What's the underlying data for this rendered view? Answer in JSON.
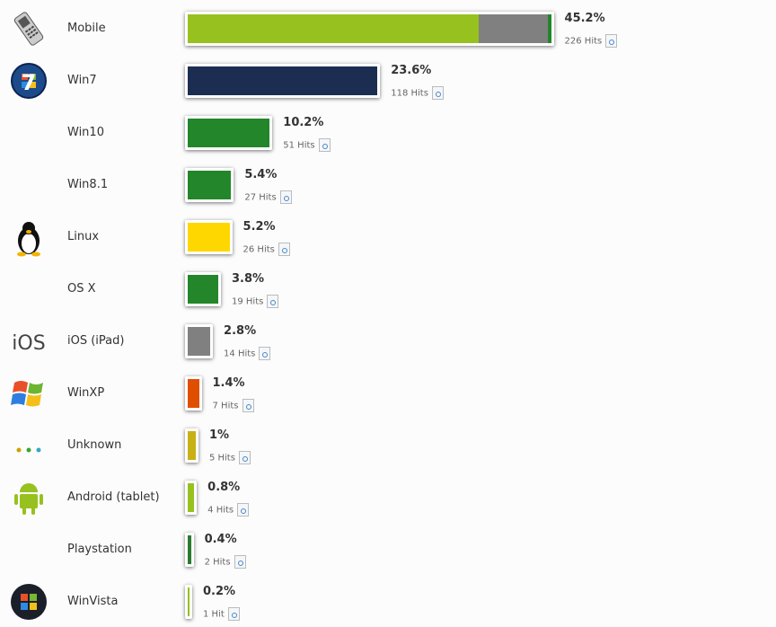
{
  "chart_data": {
    "type": "bar",
    "orientation": "horizontal",
    "categories": [
      "Mobile",
      "Win7",
      "Win10",
      "Win8.1",
      "Linux",
      "OS X",
      "iOS (iPad)",
      "WinXP",
      "Unknown",
      "Android (tablet)",
      "Playstation",
      "WinVista"
    ],
    "values": [
      45.2,
      23.6,
      10.2,
      5.4,
      5.2,
      3.8,
      2.8,
      1.4,
      1,
      0.8,
      0.4,
      0.2
    ],
    "percent_labels": [
      "45.2%",
      "23.6%",
      "10.2%",
      "5.4%",
      "5.2%",
      "3.8%",
      "2.8%",
      "1.4%",
      "1%",
      "0.8%",
      "0.4%",
      "0.2%"
    ],
    "hits_labels": [
      "226 Hits",
      "118 Hits",
      "51 Hits",
      "27 Hits",
      "26 Hits",
      "19 Hits",
      "14 Hits",
      "7 Hits",
      "5 Hits",
      "4 Hits",
      "2 Hits",
      "1 Hit"
    ],
    "colors": [
      "#97c11f",
      "#1b2d50",
      "#23862a",
      "#23862a",
      "#ffd700",
      "#23862a",
      "#808080",
      "#e04e00",
      "#c8b115",
      "#97c11f",
      "#2a7a30",
      "#97c11f"
    ],
    "segments": {
      "Mobile": [
        {
          "value": 36.2,
          "color": "#97c11f"
        },
        {
          "value": 8.6,
          "color": "#808080"
        },
        {
          "value": 0.4,
          "color": "#23862a"
        }
      ]
    },
    "icons": [
      "mobile-phone-icon",
      "windows7-icon",
      "",
      "",
      "linux-tux-icon",
      "",
      "ios-icon",
      "windows-xp-icon",
      "unknown-dots-icon",
      "android-icon",
      "",
      "windows-vista-icon"
    ]
  }
}
